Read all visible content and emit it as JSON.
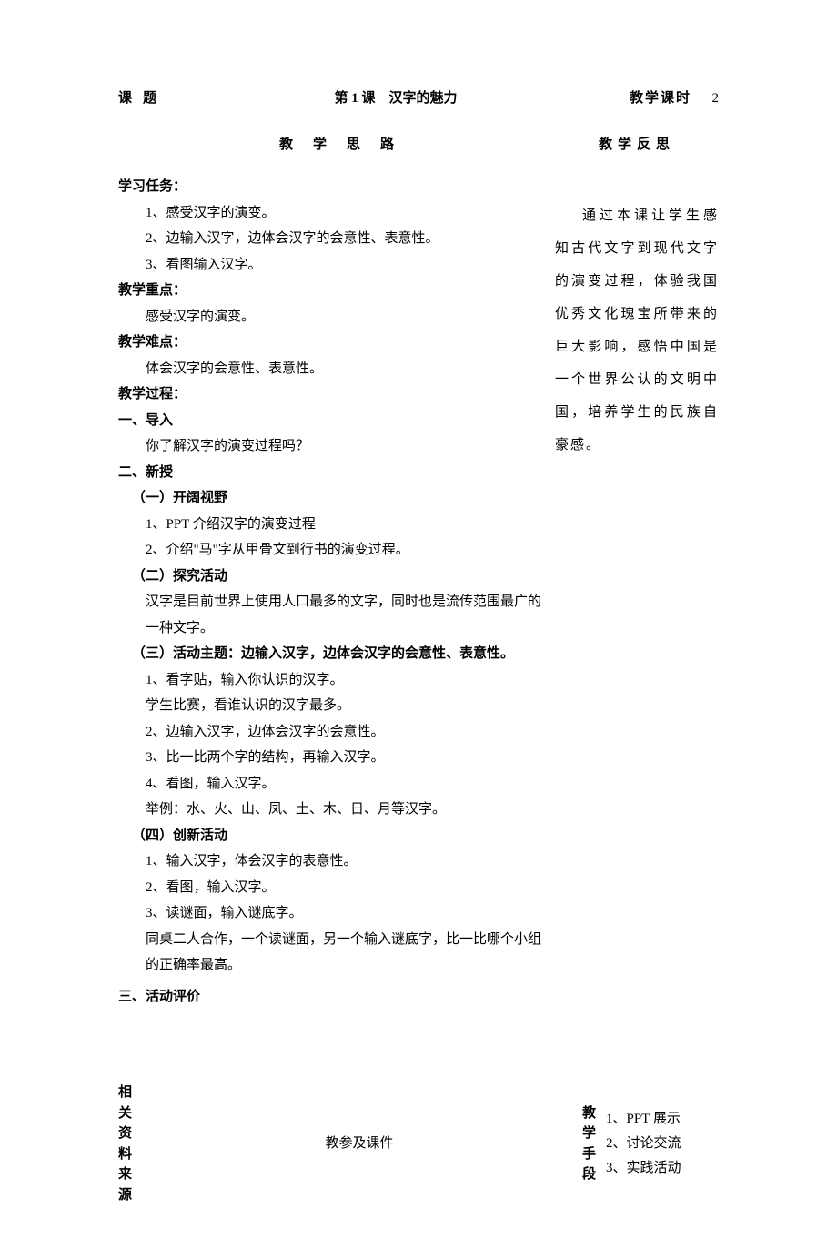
{
  "header": {
    "topic_label": "课题",
    "title": "第 1 课　汉字的魅力",
    "hours_label": "教学课时",
    "hours_value": "2"
  },
  "section_headings": {
    "thinking": "教学思路",
    "reflection": "教学反思"
  },
  "tasks": {
    "heading": "学习任务：",
    "items": [
      "1、感受汉字的演变。",
      "2、边输入汉字，边体会汉字的会意性、表意性。",
      "3、看图输入汉字。"
    ]
  },
  "focus": {
    "heading": "教学重点：",
    "text": "感受汉字的演变。"
  },
  "difficulty": {
    "heading": "教学难点：",
    "text": "体会汉字的会意性、表意性。"
  },
  "process": {
    "heading": "教学过程：",
    "s1": {
      "title": "一、导入",
      "q": "你了解汉字的演变过程吗？"
    },
    "s2": {
      "title": "二、新授",
      "sub1": {
        "title": "（一）开阔视野",
        "items": [
          "1、PPT 介绍汉字的演变过程",
          "2、介绍\"马\"字从甲骨文到行书的演变过程。"
        ]
      },
      "sub2": {
        "title": "（二）探究活动",
        "text": "汉字是目前世界上使用人口最多的文字，同时也是流传范围最广的一种文字。"
      },
      "sub3": {
        "title": "（三）活动主题：边输入汉字，边体会汉字的会意性、表意性。",
        "lines": [
          "1、看字贴，输入你认识的汉字。",
          "学生比赛，看谁认识的汉字最多。",
          "2、边输入汉字，边体会汉字的会意性。",
          "3、比一比两个字的结构，再输入汉字。",
          "4、看图，输入汉字。",
          "举例：水、火、山、凤、土、木、日、月等汉字。"
        ]
      },
      "sub4": {
        "title": "（四）创新活动",
        "lines": [
          "1、输入汉字，体会汉字的表意性。",
          "2、看图，输入汉字。",
          "3、读谜面，输入谜底字。",
          "同桌二人合作，一个读谜面，另一个输入谜底字，比一比哪个小组的正确率最高。"
        ]
      }
    },
    "s3": {
      "title": "三、活动评价"
    }
  },
  "reflection_text": "通过本课让学生感知古代文字到现代文字的演变过程，体验我国优秀文化瑰宝所带来的巨大影响，感悟中国是一个世界公认的文明中国，培养学生的民族自豪感。",
  "footer": {
    "resource_label": "相关资料来源",
    "resource_value": "教参及课件",
    "method_label": "教学手段",
    "methods": [
      "1、PPT 展示",
      "2、讨论交流",
      "3、实践活动"
    ]
  }
}
